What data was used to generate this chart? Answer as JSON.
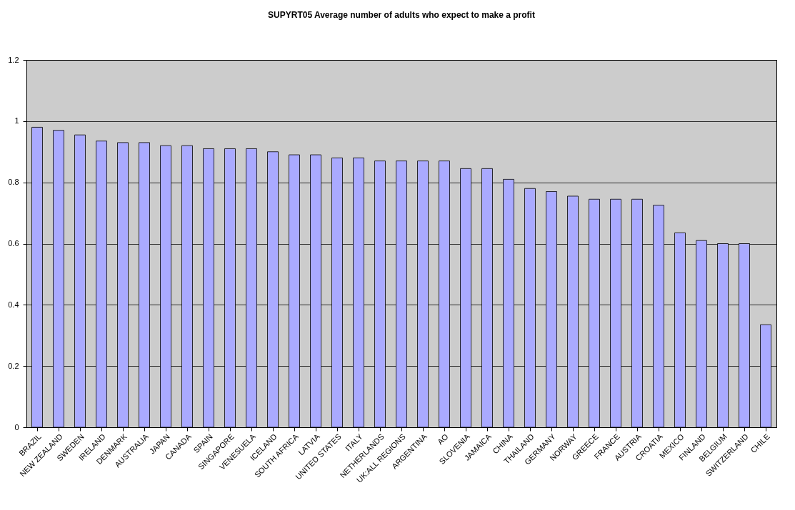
{
  "chart_data": {
    "type": "bar",
    "title": "SUPYRT05 Average number of adults who expect to make a profit",
    "categories": [
      "BRAZIL",
      "NEW ZEALAND",
      "SWEDEN",
      "IRELAND",
      "DENMARK",
      "AUSTRALIA",
      "JAPAN",
      "CANADA",
      "SPAIN",
      "SINGAPORE",
      "VENESUELA",
      "ICELAND",
      "SOUTH AFRICA",
      "LATVIA",
      "UNITED STATES",
      "ITALY",
      "NETHERLANDS",
      "UK:ALL REGIONS",
      "ARGENTINA",
      "AO",
      "SLOVENIA",
      "JAMAICA",
      "CHINA",
      "THAILAND",
      "GERMANY",
      "NORWAY",
      "GREECE",
      "FRANCE",
      "AUSTRIA",
      "CROATIA",
      "MEXICO",
      "FINLAND",
      "BELGIUM",
      "SWITZERLAND",
      "CHILE"
    ],
    "values": [
      0.98,
      0.97,
      0.955,
      0.935,
      0.93,
      0.93,
      0.92,
      0.92,
      0.91,
      0.91,
      0.91,
      0.9,
      0.89,
      0.89,
      0.88,
      0.88,
      0.87,
      0.87,
      0.87,
      0.87,
      0.845,
      0.845,
      0.81,
      0.78,
      0.77,
      0.755,
      0.745,
      0.745,
      0.745,
      0.725,
      0.635,
      0.61,
      0.6,
      0.6,
      0.335
    ],
    "color": "#aaaaff",
    "ylim": [
      0,
      1.2
    ],
    "yticks": [
      0,
      0.2,
      0.4,
      0.6,
      0.8,
      1,
      1.2
    ],
    "grid": "y"
  }
}
